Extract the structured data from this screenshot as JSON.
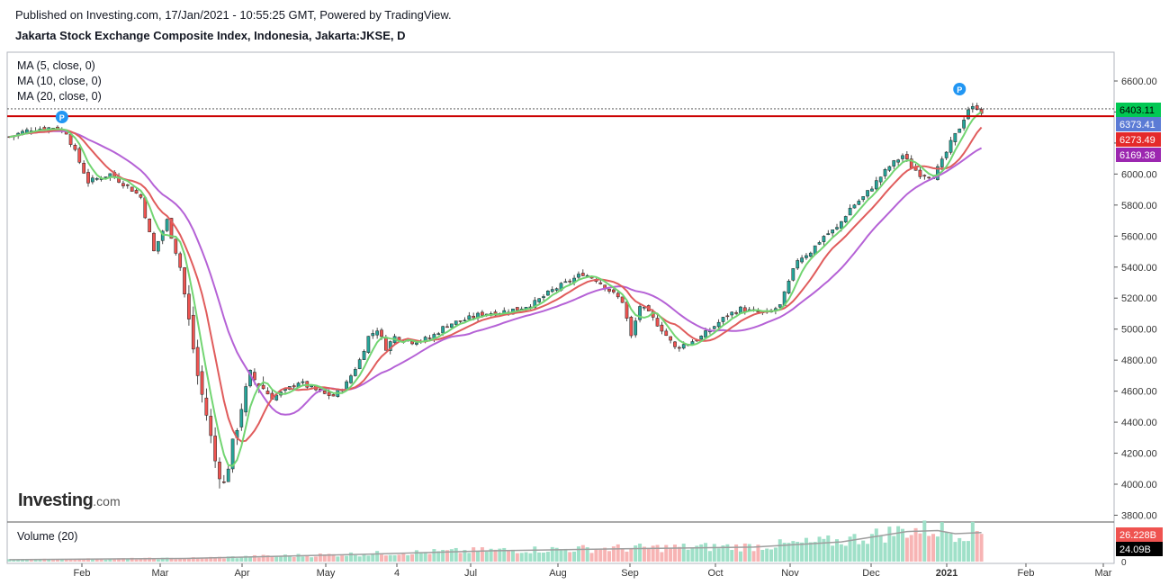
{
  "header": {
    "published": "Published on Investing.com, 17/Jan/2021 - 10:55:25 GMT, Powered by TradingView.",
    "title": "Jakarta Stock Exchange Composite Index, Indonesia, Jakarta:JKSE, D"
  },
  "legend": {
    "ma5": "MA (5, close, 0)",
    "ma10": "MA (10, close, 0)",
    "ma20": "MA (20, close, 0)",
    "volume": "Volume (20)"
  },
  "logo": {
    "main": "Investing",
    "suffix": ".com"
  },
  "colors": {
    "up": "#26a69a",
    "up_body": "#26a69a",
    "down": "#ef5350",
    "ma5": "#72d572",
    "ma10": "#e05c5c",
    "ma20": "#b562d6",
    "hline": "#cc0000",
    "vol_up": "#9fe0c8",
    "vol_down": "#f7b4b4",
    "vol_ma": "#9e9e9e"
  },
  "chart_data": {
    "type": "candlestick",
    "y_axis": {
      "min": 3700,
      "max": 6700,
      "ticks": [
        "6600.00",
        "6400.00",
        "6200.00",
        "6000.00",
        "5800.00",
        "5600.00",
        "5400.00",
        "5200.00",
        "5000.00",
        "4800.00",
        "4600.00",
        "4400.00",
        "4200.00",
        "4000.00",
        "3800.00"
      ]
    },
    "x_axis": {
      "labels": [
        "Feb",
        "Mar",
        "Apr",
        "May",
        "4",
        "Jul",
        "Aug",
        "Sep",
        "Oct",
        "Nov",
        "Dec",
        "2021",
        "Feb",
        "Mar"
      ]
    },
    "price_labels": [
      {
        "text": "6403.11",
        "value": 6403.11,
        "color": "#00c853",
        "text_color": "#000000"
      },
      {
        "text": "6373.41",
        "value": 6373.41,
        "color": "#5b7bd5",
        "text_color": "#ffffff"
      },
      {
        "text": "6273.49",
        "value": 6273.49,
        "color": "#e52a2a",
        "text_color": "#ffffff"
      },
      {
        "text": "6169.38",
        "value": 6169.38,
        "color": "#9c27b0",
        "text_color": "#ffffff"
      }
    ],
    "volume_labels": [
      {
        "text": "26.228B",
        "color": "#ef5350",
        "text_color": "#ffffff"
      },
      {
        "text": "24.09B",
        "color": "#000000",
        "text_color": "#ffffff"
      }
    ],
    "volume_axis_zero": "0",
    "horizontal_line": 6373,
    "markers": [
      "P",
      "P"
    ],
    "trend_points": [
      [
        0,
        6240
      ],
      [
        5,
        6290
      ],
      [
        10,
        6300
      ],
      [
        13,
        6270
      ],
      [
        18,
        5950
      ],
      [
        23,
        6000
      ],
      [
        28,
        5900
      ],
      [
        30,
        5850
      ],
      [
        33,
        5500
      ],
      [
        36,
        5700
      ],
      [
        39,
        5400
      ],
      [
        41,
        5050
      ],
      [
        43,
        4700
      ],
      [
        45,
        4450
      ],
      [
        47,
        4150
      ],
      [
        49,
        4000
      ],
      [
        51,
        4250
      ],
      [
        53,
        4500
      ],
      [
        55,
        4700
      ],
      [
        57,
        4650
      ],
      [
        60,
        4560
      ],
      [
        63,
        4600
      ],
      [
        66,
        4660
      ],
      [
        69,
        4620
      ],
      [
        72,
        4580
      ],
      [
        74,
        4570
      ],
      [
        77,
        4650
      ],
      [
        80,
        4800
      ],
      [
        82,
        4950
      ],
      [
        84,
        5000
      ],
      [
        86,
        4880
      ],
      [
        88,
        4950
      ],
      [
        92,
        4920
      ],
      [
        96,
        4940
      ],
      [
        100,
        5030
      ],
      [
        104,
        5060
      ],
      [
        108,
        5100
      ],
      [
        112,
        5110
      ],
      [
        116,
        5130
      ],
      [
        120,
        5170
      ],
      [
        124,
        5250
      ],
      [
        128,
        5310
      ],
      [
        131,
        5360
      ],
      [
        134,
        5320
      ],
      [
        137,
        5250
      ],
      [
        140,
        5180
      ],
      [
        142,
        4950
      ],
      [
        144,
        5150
      ],
      [
        146,
        5100
      ],
      [
        149,
        5000
      ],
      [
        152,
        4880
      ],
      [
        155,
        4910
      ],
      [
        158,
        4950
      ],
      [
        161,
        5020
      ],
      [
        164,
        5090
      ],
      [
        167,
        5130
      ],
      [
        170,
        5110
      ],
      [
        173,
        5100
      ],
      [
        176,
        5150
      ],
      [
        178,
        5300
      ],
      [
        180,
        5450
      ],
      [
        183,
        5500
      ],
      [
        186,
        5600
      ],
      [
        189,
        5650
      ],
      [
        192,
        5780
      ],
      [
        195,
        5850
      ],
      [
        198,
        5950
      ],
      [
        201,
        6050
      ],
      [
        204,
        6120
      ],
      [
        206,
        6050
      ],
      [
        208,
        6000
      ],
      [
        211,
        5990
      ],
      [
        213,
        6080
      ],
      [
        215,
        6200
      ],
      [
        217,
        6300
      ],
      [
        219,
        6420
      ],
      [
        221,
        6430
      ],
      [
        222,
        6403
      ]
    ],
    "volume_ma": [
      [
        0,
        0.9
      ],
      [
        40,
        1.5
      ],
      [
        80,
        3.5
      ],
      [
        110,
        5.2
      ],
      [
        140,
        6.2
      ],
      [
        170,
        7.0
      ],
      [
        190,
        9.5
      ],
      [
        205,
        14.5
      ],
      [
        212,
        15.0
      ],
      [
        216,
        13.5
      ],
      [
        222,
        14.0
      ]
    ]
  }
}
